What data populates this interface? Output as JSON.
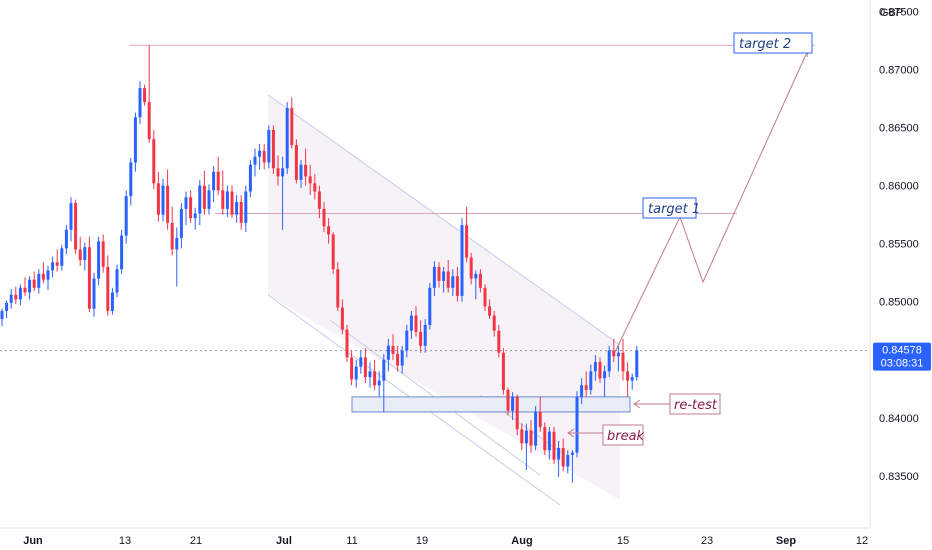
{
  "chart_data": {
    "type": "candlestick",
    "currency": "GBP",
    "ylim": [
      0.8305,
      0.876
    ],
    "y_ticks": [
      "0.87500",
      "0.87000",
      "0.86500",
      "0.86000",
      "0.85500",
      "0.85000",
      "0.84500",
      "0.84000",
      "0.83500"
    ],
    "x_ticks": [
      "Jun",
      "13",
      "21",
      "Jul",
      "11",
      "19",
      "Aug",
      "15",
      "23",
      "Sep",
      "12"
    ],
    "last_price": "0.84578",
    "countdown": "03:08:31",
    "colors": {
      "up": "#2962ff",
      "down": "#f23645",
      "line": "#e0a0b0",
      "text_blue": "#1e3f8a",
      "text_maroon": "#8b1a4a",
      "box_fill": "#e8edf8",
      "box_border": "#6a88d0",
      "channel": "#b9c3e8"
    },
    "levels": {
      "target_1": 0.8576,
      "target_2": 0.8721,
      "retest_zone": [
        0.8405,
        0.8418
      ]
    },
    "candles": [
      [
        0.8485,
        0.8494,
        0.8479,
        0.8492
      ],
      [
        0.8492,
        0.8501,
        0.8486,
        0.8499
      ],
      [
        0.8499,
        0.8511,
        0.8494,
        0.8506
      ],
      [
        0.8506,
        0.8513,
        0.8498,
        0.8502
      ],
      [
        0.8502,
        0.8515,
        0.8497,
        0.8512
      ],
      [
        0.8512,
        0.8521,
        0.8505,
        0.8508
      ],
      [
        0.8508,
        0.8522,
        0.8502,
        0.8519
      ],
      [
        0.8519,
        0.8526,
        0.8509,
        0.8512
      ],
      [
        0.8512,
        0.8528,
        0.8507,
        0.8524
      ],
      [
        0.8524,
        0.8534,
        0.8516,
        0.8519
      ],
      [
        0.8519,
        0.8531,
        0.851,
        0.8527
      ],
      [
        0.8527,
        0.8539,
        0.8521,
        0.8534
      ],
      [
        0.8534,
        0.8545,
        0.8526,
        0.8531
      ],
      [
        0.8531,
        0.8549,
        0.8527,
        0.8546
      ],
      [
        0.8546,
        0.8566,
        0.8541,
        0.8562
      ],
      [
        0.8562,
        0.859,
        0.8552,
        0.8585
      ],
      [
        0.8585,
        0.8588,
        0.8541,
        0.8545
      ],
      [
        0.8545,
        0.8556,
        0.8531,
        0.8536
      ],
      [
        0.8536,
        0.8551,
        0.8527,
        0.8547
      ],
      [
        0.8547,
        0.8556,
        0.8491,
        0.8494
      ],
      [
        0.8494,
        0.8525,
        0.8487,
        0.852
      ],
      [
        0.852,
        0.8556,
        0.8514,
        0.8552
      ],
      [
        0.8552,
        0.8558,
        0.8525,
        0.853
      ],
      [
        0.853,
        0.854,
        0.8488,
        0.8492
      ],
      [
        0.8492,
        0.8512,
        0.8489,
        0.8508
      ],
      [
        0.8508,
        0.8532,
        0.8504,
        0.8528
      ],
      [
        0.8528,
        0.8562,
        0.8524,
        0.8557
      ],
      [
        0.8557,
        0.8596,
        0.855,
        0.8591
      ],
      [
        0.8591,
        0.8624,
        0.8583,
        0.862
      ],
      [
        0.862,
        0.8663,
        0.8612,
        0.8659
      ],
      [
        0.8659,
        0.869,
        0.8653,
        0.8684
      ],
      [
        0.8684,
        0.8687,
        0.8669,
        0.8672
      ],
      [
        0.8672,
        0.8721,
        0.8637,
        0.864
      ],
      [
        0.864,
        0.8648,
        0.8597,
        0.8602
      ],
      [
        0.8602,
        0.8612,
        0.8569,
        0.8575
      ],
      [
        0.8575,
        0.8606,
        0.8569,
        0.86
      ],
      [
        0.86,
        0.8614,
        0.8562,
        0.8568
      ],
      [
        0.8568,
        0.8582,
        0.854,
        0.8545
      ],
      [
        0.8545,
        0.8564,
        0.8513,
        0.8555
      ],
      [
        0.8555,
        0.8585,
        0.8546,
        0.858
      ],
      [
        0.858,
        0.8595,
        0.8566,
        0.859
      ],
      [
        0.859,
        0.8596,
        0.8568,
        0.8572
      ],
      [
        0.8572,
        0.8581,
        0.8562,
        0.8576
      ],
      [
        0.8576,
        0.8605,
        0.8566,
        0.86
      ],
      [
        0.86,
        0.8613,
        0.8575,
        0.858
      ],
      [
        0.858,
        0.8601,
        0.8575,
        0.8596
      ],
      [
        0.8596,
        0.8617,
        0.8586,
        0.8612
      ],
      [
        0.8612,
        0.8625,
        0.8592,
        0.8596
      ],
      [
        0.8596,
        0.8613,
        0.8575,
        0.858
      ],
      [
        0.858,
        0.86,
        0.8573,
        0.8595
      ],
      [
        0.8595,
        0.86,
        0.8572,
        0.8575
      ],
      [
        0.8575,
        0.8592,
        0.8568,
        0.8586
      ],
      [
        0.8586,
        0.8592,
        0.8562,
        0.8568
      ],
      [
        0.8568,
        0.86,
        0.856,
        0.8595
      ],
      [
        0.8595,
        0.8622,
        0.859,
        0.8618
      ],
      [
        0.8618,
        0.8632,
        0.8608,
        0.8625
      ],
      [
        0.8625,
        0.8636,
        0.8614,
        0.863
      ],
      [
        0.863,
        0.8636,
        0.8614,
        0.862
      ],
      [
        0.862,
        0.8652,
        0.8615,
        0.8648
      ],
      [
        0.8648,
        0.8652,
        0.861,
        0.8615
      ],
      [
        0.8615,
        0.8626,
        0.86,
        0.8608
      ],
      [
        0.8608,
        0.8625,
        0.8562,
        0.8615
      ],
      [
        0.8615,
        0.8672,
        0.861,
        0.8667
      ],
      [
        0.8667,
        0.8676,
        0.8632,
        0.8635
      ],
      [
        0.8635,
        0.864,
        0.8602,
        0.8605
      ],
      [
        0.8605,
        0.8622,
        0.8598,
        0.8618
      ],
      [
        0.8618,
        0.8632,
        0.86,
        0.8608
      ],
      [
        0.8608,
        0.8618,
        0.8592,
        0.8602
      ],
      [
        0.8602,
        0.861,
        0.8588,
        0.8595
      ],
      [
        0.8595,
        0.86,
        0.8572,
        0.858
      ],
      [
        0.858,
        0.8586,
        0.856,
        0.8565
      ],
      [
        0.8565,
        0.8572,
        0.855,
        0.8558
      ],
      [
        0.8558,
        0.856,
        0.8524,
        0.8528
      ],
      [
        0.8528,
        0.8534,
        0.8492,
        0.8495
      ],
      [
        0.8495,
        0.8502,
        0.8472,
        0.8476
      ],
      [
        0.8476,
        0.848,
        0.8448,
        0.8452
      ],
      [
        0.8452,
        0.8458,
        0.8428,
        0.8433
      ],
      [
        0.8433,
        0.845,
        0.8426,
        0.8444
      ],
      [
        0.8444,
        0.8458,
        0.8438,
        0.8452
      ],
      [
        0.8452,
        0.846,
        0.843,
        0.8435
      ],
      [
        0.8435,
        0.8448,
        0.8426,
        0.844
      ],
      [
        0.844,
        0.845,
        0.8424,
        0.8428
      ],
      [
        0.8428,
        0.844,
        0.8418,
        0.8432
      ],
      [
        0.8432,
        0.8455,
        0.8405,
        0.845
      ],
      [
        0.845,
        0.8468,
        0.844,
        0.8462
      ],
      [
        0.8462,
        0.8472,
        0.845,
        0.8455
      ],
      [
        0.8455,
        0.8462,
        0.844,
        0.8445
      ],
      [
        0.8445,
        0.8462,
        0.8438,
        0.8458
      ],
      [
        0.8458,
        0.848,
        0.8452,
        0.8475
      ],
      [
        0.8475,
        0.8492,
        0.8468,
        0.8488
      ],
      [
        0.8488,
        0.8496,
        0.847,
        0.8474
      ],
      [
        0.8474,
        0.8484,
        0.8456,
        0.8462
      ],
      [
        0.8462,
        0.8485,
        0.8456,
        0.848
      ],
      [
        0.848,
        0.8516,
        0.8476,
        0.8512
      ],
      [
        0.8512,
        0.8535,
        0.8505,
        0.853
      ],
      [
        0.853,
        0.8534,
        0.8512,
        0.8518
      ],
      [
        0.8518,
        0.853,
        0.8508,
        0.8526
      ],
      [
        0.8526,
        0.8536,
        0.8508,
        0.8512
      ],
      [
        0.8512,
        0.8528,
        0.8505,
        0.8522
      ],
      [
        0.8522,
        0.853,
        0.85,
        0.8505
      ],
      [
        0.8505,
        0.8572,
        0.85,
        0.8566
      ],
      [
        0.8566,
        0.8582,
        0.8534,
        0.8538
      ],
      [
        0.8538,
        0.8542,
        0.8515,
        0.852
      ],
      [
        0.852,
        0.8527,
        0.8502,
        0.8524
      ],
      [
        0.8524,
        0.8528,
        0.8508,
        0.8512
      ],
      [
        0.8512,
        0.8515,
        0.8492,
        0.8496
      ],
      [
        0.8496,
        0.8502,
        0.8485,
        0.8488
      ],
      [
        0.8488,
        0.8492,
        0.847,
        0.8475
      ],
      [
        0.8475,
        0.848,
        0.8452,
        0.8456
      ],
      [
        0.8456,
        0.846,
        0.842,
        0.8424
      ],
      [
        0.8424,
        0.8426,
        0.8402,
        0.8406
      ],
      [
        0.8406,
        0.8422,
        0.8398,
        0.8418
      ],
      [
        0.8418,
        0.842,
        0.8385,
        0.839
      ],
      [
        0.839,
        0.8395,
        0.8372,
        0.8378
      ],
      [
        0.8378,
        0.8395,
        0.8355,
        0.8389
      ],
      [
        0.8389,
        0.8398,
        0.837,
        0.8376
      ],
      [
        0.8376,
        0.841,
        0.8372,
        0.8405
      ],
      [
        0.8405,
        0.8418,
        0.8388,
        0.8392
      ],
      [
        0.8392,
        0.8396,
        0.8368,
        0.8372
      ],
      [
        0.8372,
        0.8392,
        0.8364,
        0.8388
      ],
      [
        0.8388,
        0.8392,
        0.836,
        0.8364
      ],
      [
        0.8364,
        0.838,
        0.8349,
        0.8374
      ],
      [
        0.8374,
        0.8382,
        0.8354,
        0.8358
      ],
      [
        0.8358,
        0.8372,
        0.8352,
        0.8368
      ],
      [
        0.8368,
        0.8372,
        0.8344,
        0.837
      ],
      [
        0.837,
        0.8423,
        0.8366,
        0.8418
      ],
      [
        0.8418,
        0.8434,
        0.8412,
        0.8428
      ],
      [
        0.8428,
        0.844,
        0.8418,
        0.8424
      ],
      [
        0.8424,
        0.8446,
        0.842,
        0.844
      ],
      [
        0.844,
        0.8454,
        0.8432,
        0.8448
      ],
      [
        0.8448,
        0.8452,
        0.843,
        0.8434
      ],
      [
        0.8434,
        0.8445,
        0.8418,
        0.844
      ],
      [
        0.844,
        0.8462,
        0.8435,
        0.8458
      ],
      [
        0.8458,
        0.8468,
        0.8448,
        0.8453
      ],
      [
        0.8453,
        0.8462,
        0.844,
        0.8456
      ],
      [
        0.8456,
        0.8468,
        0.8432,
        0.844
      ],
      [
        0.844,
        0.8448,
        0.8418,
        0.8432
      ],
      [
        0.8432,
        0.8438,
        0.8424,
        0.8435
      ],
      [
        0.8435,
        0.8462,
        0.8432,
        0.8458
      ]
    ],
    "annotations": [
      {
        "text": "target 2",
        "label": "target 2"
      },
      {
        "text": "target 1",
        "label": "target 1"
      },
      {
        "text": "re-test",
        "label": "re-test"
      },
      {
        "text": "break",
        "label": "break"
      }
    ]
  }
}
